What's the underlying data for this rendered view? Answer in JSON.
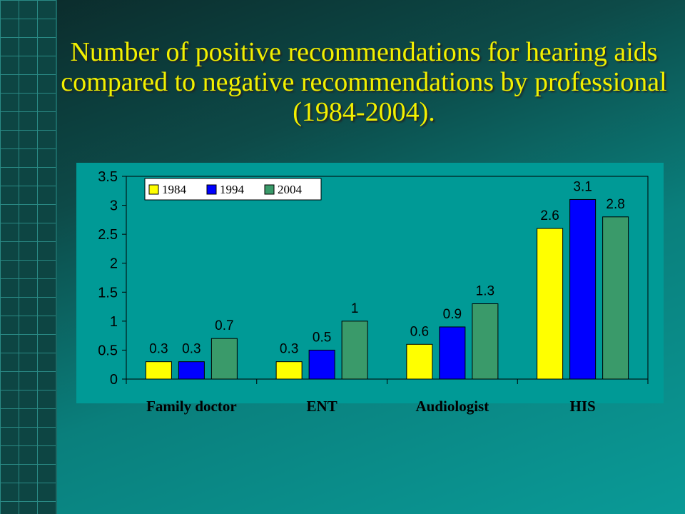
{
  "title": "Number of positive recommendations for hearing aids compared to negative recommendations by professional (1984-2004).",
  "colors": {
    "series_1984": "#ffff00",
    "series_1994": "#0000ff",
    "series_2004": "#3a9a6a",
    "title": "#f2f000"
  },
  "chart_data": {
    "type": "bar",
    "categories": [
      "Family doctor",
      "ENT",
      "Audiologist",
      "HIS"
    ],
    "series": [
      {
        "name": "1984",
        "values": [
          0.3,
          0.3,
          0.6,
          2.6
        ],
        "labels": [
          "0.3",
          "0.3",
          "0.6",
          "2.6"
        ]
      },
      {
        "name": "1994",
        "values": [
          0.3,
          0.5,
          0.9,
          3.1
        ],
        "labels": [
          "0.3",
          "0.5",
          "0.9",
          "3.1"
        ]
      },
      {
        "name": "2004",
        "values": [
          0.7,
          1.0,
          1.3,
          2.8
        ],
        "labels": [
          "0.7",
          "1",
          "1.3",
          "2.8"
        ]
      }
    ],
    "yticks": [
      "0",
      "0.5",
      "1",
      "1.5",
      "2",
      "2.5",
      "3",
      "3.5"
    ],
    "ylim": [
      0,
      3.5
    ],
    "legend_position": "top-left",
    "grid": false
  }
}
